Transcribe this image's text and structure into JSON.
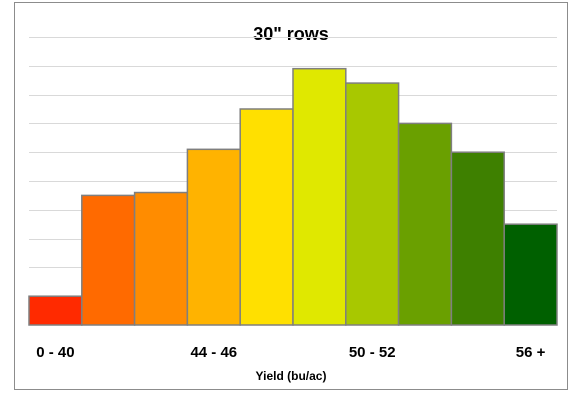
{
  "chart_data": {
    "type": "bar",
    "title": "30\" rows",
    "xlabel": "Yield (bu/ac)",
    "ylabel": "",
    "categories": [
      "0 - 40",
      "",
      "",
      "44 - 46",
      "",
      "",
      "50 - 52",
      "",
      "",
      "56 +"
    ],
    "values": [
      1,
      4.5,
      4.6,
      6.1,
      7.5,
      8.9,
      8.4,
      7.0,
      6.0,
      3.5
    ],
    "ylim": [
      0,
      10
    ],
    "grid": true,
    "legend": "none",
    "bar_colors": [
      "#ff2a00",
      "#ff6a00",
      "#ff8c00",
      "#ffb300",
      "#ffe000",
      "#e0e800",
      "#a8c800",
      "#6aa000",
      "#3e8000",
      "#006000"
    ],
    "bar_edge_color": "#7f7f7f",
    "grid_color": "#d9d9d9"
  }
}
